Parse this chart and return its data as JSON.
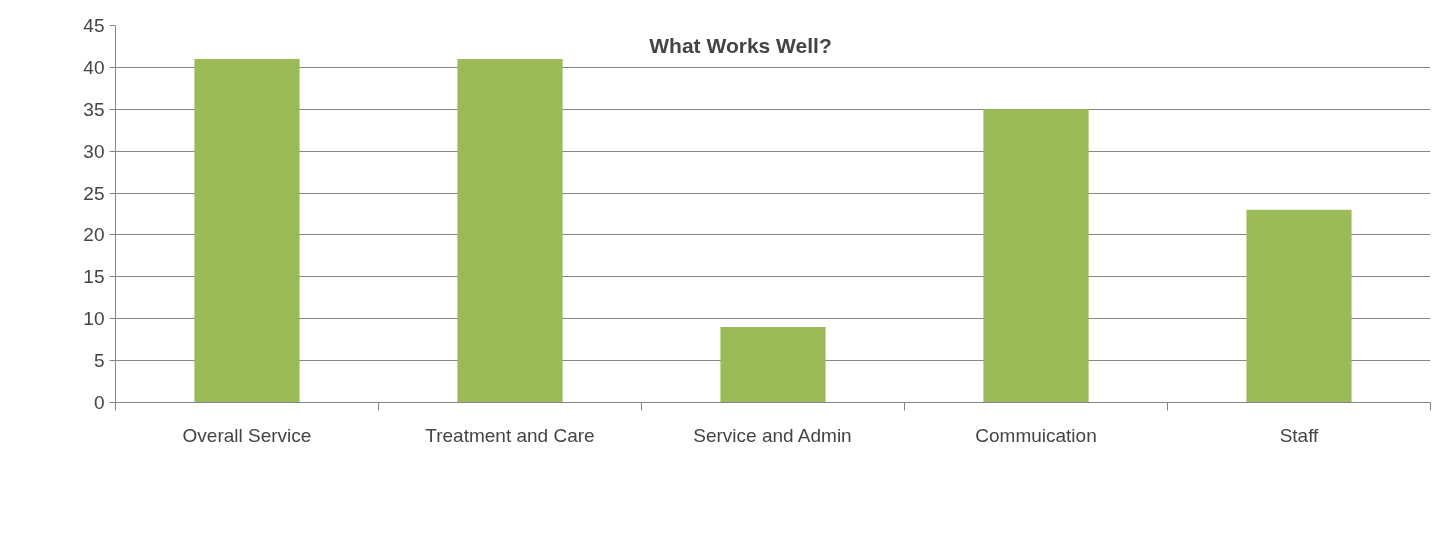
{
  "chart_data": {
    "type": "bar",
    "title": "What Works Well?",
    "categories": [
      "Overall Service",
      "Treatment and Care",
      "Service and Admin",
      "Commuication",
      "Staff"
    ],
    "values": [
      41,
      41,
      9,
      35,
      23
    ],
    "color": "#9bbb59",
    "ylim": [
      0,
      45
    ],
    "yticks": [
      0,
      5,
      10,
      15,
      20,
      25,
      30,
      35,
      40,
      45
    ],
    "grid": "y"
  }
}
